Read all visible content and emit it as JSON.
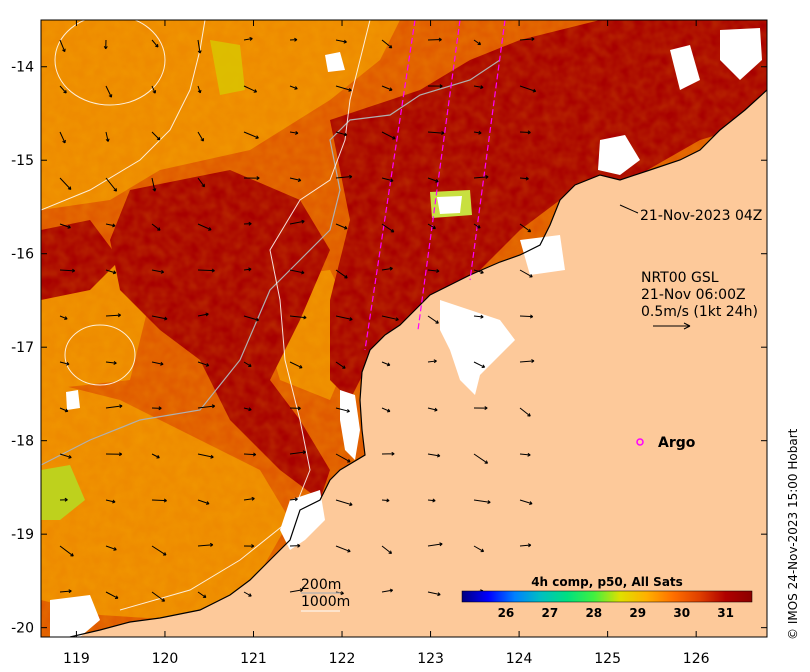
{
  "map": {
    "y_ticks": [
      {
        "label": "-14",
        "lat": -14
      },
      {
        "label": "-15",
        "lat": -15
      },
      {
        "label": "-16",
        "lat": -16
      },
      {
        "label": "-17",
        "lat": -17
      },
      {
        "label": "-18",
        "lat": -18
      },
      {
        "label": "-19",
        "lat": -19
      },
      {
        "label": "-20",
        "lat": -20
      }
    ],
    "x_ticks": [
      {
        "label": "119",
        "lon": 119
      },
      {
        "label": "120",
        "lon": 120
      },
      {
        "label": "121",
        "lon": 121
      },
      {
        "label": "122",
        "lon": 122
      },
      {
        "label": "123",
        "lon": 123
      },
      {
        "label": "124",
        "lon": 124
      },
      {
        "label": "125",
        "lon": 125
      },
      {
        "label": "126",
        "lon": 126
      }
    ],
    "lon_range": [
      118.6,
      126.8
    ],
    "lat_range": [
      -20.1,
      -13.5
    ]
  },
  "annotations": {
    "pass_time": "21-Nov-2023 04Z",
    "current_source": "NRT00 GSL",
    "current_time": "21-Nov 06:00Z",
    "current_scale": "0.5m/s (1kt 24h)",
    "argo_label": "Argo",
    "isobath_200": "200m",
    "isobath_1000": "1000m"
  },
  "colorbar": {
    "title": "4h comp, p50, All Sats",
    "range": [
      25,
      31.6
    ],
    "ticks": [
      "26",
      "27",
      "28",
      "29",
      "30",
      "31"
    ],
    "tick_values": [
      26,
      27,
      28,
      29,
      30,
      31
    ],
    "colors": [
      "#000080",
      "#0000ff",
      "#0080ff",
      "#00c0c0",
      "#00e080",
      "#40f040",
      "#e0e000",
      "#ffb000",
      "#ff7000",
      "#e04000",
      "#b00000",
      "#8b0000"
    ]
  },
  "colors": {
    "land": "#fdc99a",
    "sst_dark": "#a80000",
    "sst_mid": "#e05a00",
    "sst_warm": "#ee8a00",
    "sst_light": "#f4a800",
    "argo_marker": "#ff00ff",
    "track_line": "#ff00ff"
  },
  "credit": "© IMOS 24-Nov-2023 15:00 Hobart"
}
